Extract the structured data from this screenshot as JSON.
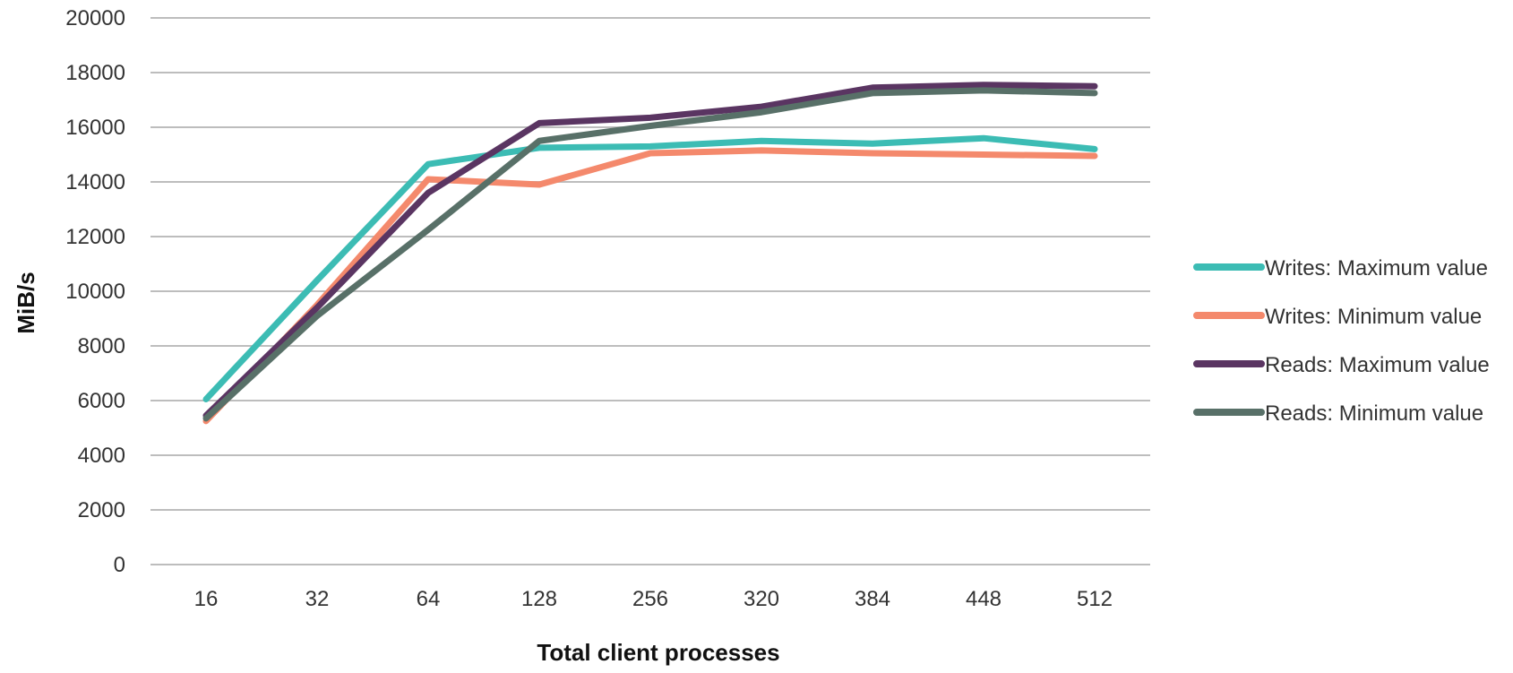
{
  "chart_data": {
    "type": "line",
    "title": "",
    "xlabel": "Total client processes",
    "ylabel": "MiB/s",
    "categories": [
      "16",
      "32",
      "64",
      "128",
      "256",
      "320",
      "384",
      "448",
      "512"
    ],
    "ylim": [
      0,
      20000
    ],
    "yticks": [
      "0",
      "2000",
      "4000",
      "6000",
      "8000",
      "10000",
      "12000",
      "14000",
      "16000",
      "18000",
      "20000"
    ],
    "grid": true,
    "legend_position": "right",
    "series": [
      {
        "name": "Writes: Maximum value",
        "color": "#3cbcb4",
        "values": [
          6050,
          10400,
          14650,
          15250,
          15300,
          15500,
          15400,
          15600,
          15200
        ]
      },
      {
        "name": "Writes: Minimum value",
        "color": "#f4896c",
        "values": [
          5250,
          9500,
          14100,
          13900,
          15050,
          15150,
          15050,
          15000,
          14950
        ]
      },
      {
        "name": "Reads: Maximum value",
        "color": "#5a3562",
        "values": [
          5450,
          9400,
          13600,
          16150,
          16350,
          16750,
          17450,
          17550,
          17500
        ]
      },
      {
        "name": "Reads: Minimum value",
        "color": "#587068",
        "values": [
          5350,
          9100,
          12250,
          15500,
          16050,
          16550,
          17250,
          17350,
          17250
        ]
      }
    ]
  }
}
